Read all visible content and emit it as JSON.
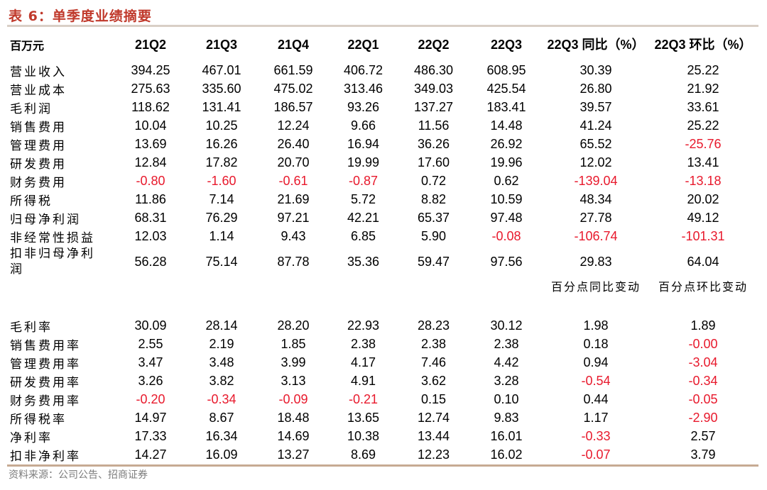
{
  "title": "表 6：单季度业绩摘要",
  "header": {
    "unit": "百万元",
    "columns": [
      "21Q2",
      "21Q3",
      "21Q4",
      "22Q1",
      "22Q2",
      "22Q3",
      "22Q3 同比（%）",
      "22Q3 环比（%）"
    ]
  },
  "rows": [
    {
      "label": "营业收入",
      "values": [
        "394.25",
        "467.01",
        "661.59",
        "406.72",
        "486.30",
        "608.95",
        "30.39",
        "25.22"
      ]
    },
    {
      "label": "营业成本",
      "values": [
        "275.63",
        "335.60",
        "475.02",
        "313.46",
        "349.03",
        "425.54",
        "26.80",
        "21.92"
      ]
    },
    {
      "label": "毛利润",
      "values": [
        "118.62",
        "131.41",
        "186.57",
        "93.26",
        "137.27",
        "183.41",
        "39.57",
        "33.61"
      ]
    },
    {
      "label": "销售费用",
      "values": [
        "10.04",
        "10.25",
        "12.24",
        "9.66",
        "11.56",
        "14.48",
        "41.24",
        "25.22"
      ]
    },
    {
      "label": "管理费用",
      "values": [
        "13.69",
        "16.26",
        "26.40",
        "16.94",
        "36.26",
        "26.92",
        "65.52",
        "-25.76"
      ]
    },
    {
      "label": "研发费用",
      "values": [
        "12.84",
        "17.82",
        "20.70",
        "19.99",
        "17.60",
        "19.96",
        "12.02",
        "13.41"
      ]
    },
    {
      "label": "财务费用",
      "values": [
        "-0.80",
        "-1.60",
        "-0.61",
        "-0.87",
        "0.72",
        "0.62",
        "-139.04",
        "-13.18"
      ]
    },
    {
      "label": "所得税",
      "values": [
        "11.86",
        "7.14",
        "21.69",
        "5.72",
        "8.82",
        "10.59",
        "48.34",
        "20.02"
      ]
    },
    {
      "label": "归母净利润",
      "values": [
        "68.31",
        "76.29",
        "97.21",
        "42.21",
        "65.37",
        "97.48",
        "27.78",
        "49.12"
      ]
    },
    {
      "label": "非经常性损益",
      "values": [
        "12.03",
        "1.14",
        "9.43",
        "6.85",
        "5.90",
        "-0.08",
        "-106.74",
        "-101.31"
      ]
    },
    {
      "label": "扣非归母净利润",
      "values": [
        "56.28",
        "75.14",
        "87.78",
        "35.36",
        "59.47",
        "97.56",
        "29.83",
        "64.04"
      ]
    }
  ],
  "subheader": {
    "yoy": "百分点同比变动",
    "qoq": "百分点环比变动"
  },
  "ratio_rows": [
    {
      "label": "毛利率",
      "values": [
        "30.09",
        "28.14",
        "28.20",
        "22.93",
        "28.23",
        "30.12",
        "1.98",
        "1.89"
      ]
    },
    {
      "label": "销售费用率",
      "values": [
        "2.55",
        "2.19",
        "1.85",
        "2.38",
        "2.38",
        "2.38",
        "0.18",
        "-0.00"
      ]
    },
    {
      "label": "管理费用率",
      "values": [
        "3.47",
        "3.48",
        "3.99",
        "4.17",
        "7.46",
        "4.42",
        "0.94",
        "-3.04"
      ]
    },
    {
      "label": "研发费用率",
      "values": [
        "3.26",
        "3.82",
        "3.13",
        "4.91",
        "3.62",
        "3.28",
        "-0.54",
        "-0.34"
      ]
    },
    {
      "label": "财务费用率",
      "values": [
        "-0.20",
        "-0.34",
        "-0.09",
        "-0.21",
        "0.15",
        "0.10",
        "0.44",
        "-0.05"
      ]
    },
    {
      "label": "所得税率",
      "values": [
        "14.97",
        "8.67",
        "18.48",
        "13.65",
        "12.74",
        "9.83",
        "1.17",
        "-2.90"
      ]
    },
    {
      "label": "净利率",
      "values": [
        "17.33",
        "16.34",
        "14.69",
        "10.38",
        "13.44",
        "16.01",
        "-0.33",
        "2.57"
      ]
    },
    {
      "label": "扣非净利率",
      "values": [
        "14.27",
        "16.09",
        "13.27",
        "8.69",
        "12.23",
        "16.02",
        "-0.07",
        "3.79"
      ]
    }
  ],
  "source": "资料来源：公司公告、招商证券",
  "colors": {
    "title": "#c0392b",
    "negative": "#e8192c",
    "rule": "#c7aa93"
  }
}
